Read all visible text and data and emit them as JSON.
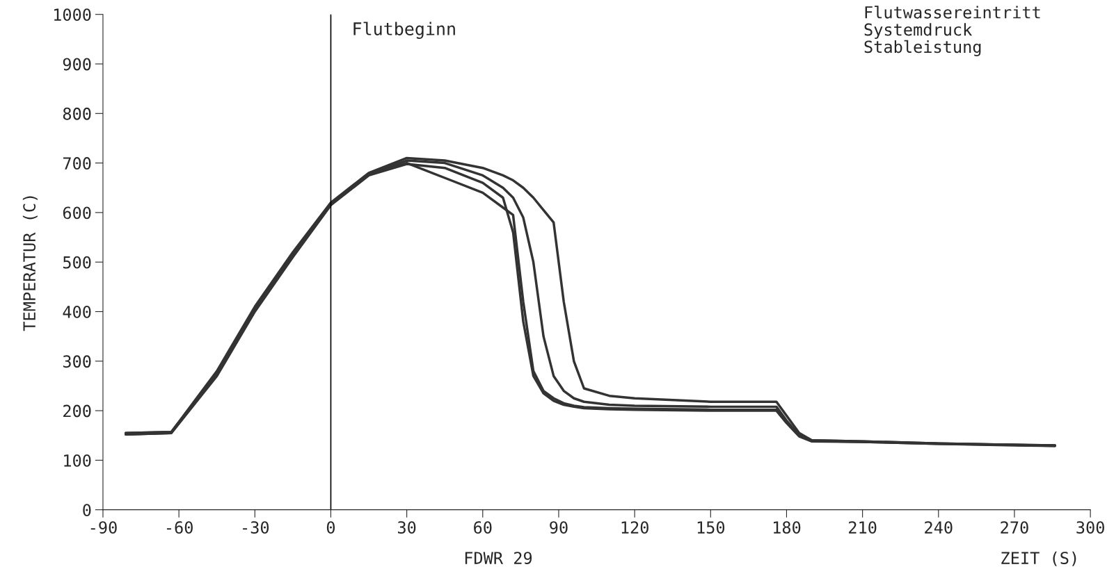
{
  "chart_data": {
    "type": "line",
    "xlabel": "ZEIT (S)",
    "ylabel": "TEMPERATUR (C)",
    "annotations": [
      "FDWR 29",
      "Flutwassereintritt\nSystemdruck\nStableistung"
    ],
    "x": [
      -81,
      -63,
      -45,
      -30,
      -15,
      0,
      15,
      30,
      45,
      60,
      68,
      72,
      76,
      80,
      84,
      88,
      92,
      96,
      100,
      110,
      120,
      150,
      176,
      180,
      185,
      190,
      210,
      240,
      270,
      286
    ],
    "series": [
      {
        "color": "#333333",
        "values": [
          155,
          157,
          280,
          410,
          520,
          620,
          680,
          710,
          705,
          690,
          675,
          665,
          650,
          630,
          605,
          580,
          420,
          300,
          245,
          230,
          225,
          218,
          218,
          190,
          155,
          140,
          138,
          134,
          131,
          130
        ]
      },
      {
        "color": "#333333",
        "values": [
          155,
          157,
          275,
          405,
          515,
          618,
          678,
          705,
          700,
          675,
          650,
          630,
          590,
          500,
          350,
          270,
          240,
          225,
          218,
          212,
          210,
          208,
          208,
          180,
          150,
          140,
          138,
          134,
          131,
          130
        ]
      },
      {
        "color": "#333333",
        "values": [
          152,
          155,
          270,
          400,
          510,
          615,
          675,
          698,
          690,
          660,
          630,
          560,
          380,
          270,
          235,
          220,
          212,
          208,
          205,
          203,
          202,
          200,
          200,
          175,
          148,
          138,
          137,
          133,
          130,
          129
        ]
      },
      {
        "color": "#333333",
        "values": [
          152,
          155,
          272,
          402,
          512,
          616,
          676,
          700,
          670,
          640,
          610,
          595,
          420,
          280,
          240,
          225,
          215,
          210,
          207,
          205,
          204,
          202,
          202,
          177,
          149,
          139,
          137,
          133,
          131,
          129
        ]
      }
    ],
    "xlim": [
      -90,
      300
    ],
    "xticks": [
      -90,
      -60,
      -30,
      0,
      30,
      60,
      90,
      120,
      150,
      180,
      210,
      240,
      270,
      300
    ],
    "ylim": [
      0,
      1000
    ],
    "yticks": [
      0,
      100,
      200,
      300,
      400,
      500,
      600,
      700,
      800,
      900,
      1000
    ],
    "ref_lines": [
      {
        "axis": "x",
        "value": 0,
        "label": "Flutbeginn",
        "color": "#000000"
      }
    ],
    "grid": false,
    "legend": false,
    "marker": "none",
    "line_style": "solid"
  }
}
